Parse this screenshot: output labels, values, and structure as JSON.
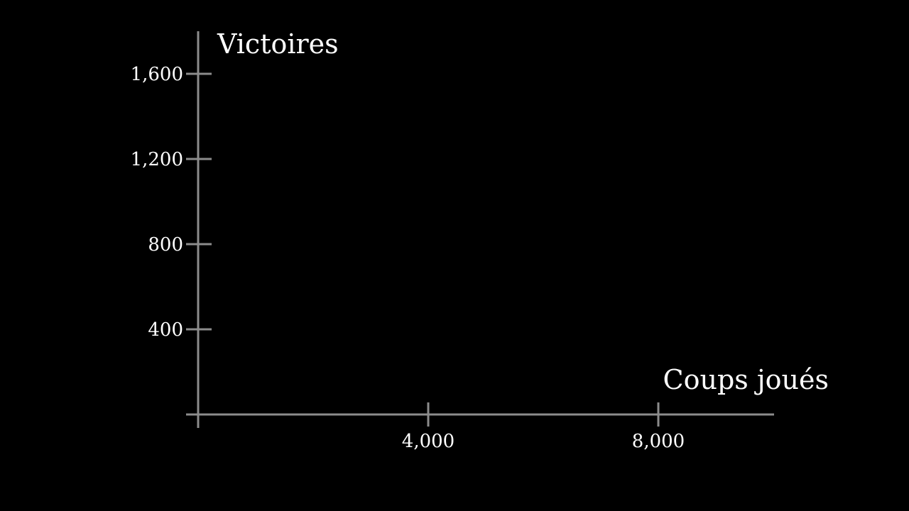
{
  "chart_data": {
    "type": "line",
    "title": "",
    "xlabel": "Coups joués",
    "ylabel": "Victoires",
    "xlim": [
      0,
      10000
    ],
    "ylim": [
      0,
      1600
    ],
    "xticks": [
      4000,
      8000
    ],
    "xtick_labels": [
      "4,000",
      "8,000"
    ],
    "yticks": [
      400,
      800,
      1200,
      1600
    ],
    "ytick_labels": [
      "400",
      "800",
      "1,200",
      "1,600"
    ],
    "series": [],
    "grid": false,
    "legend": "none",
    "colors": {
      "background": "#000000",
      "axis": "#8c8c8c",
      "text": "#ffffff"
    }
  }
}
